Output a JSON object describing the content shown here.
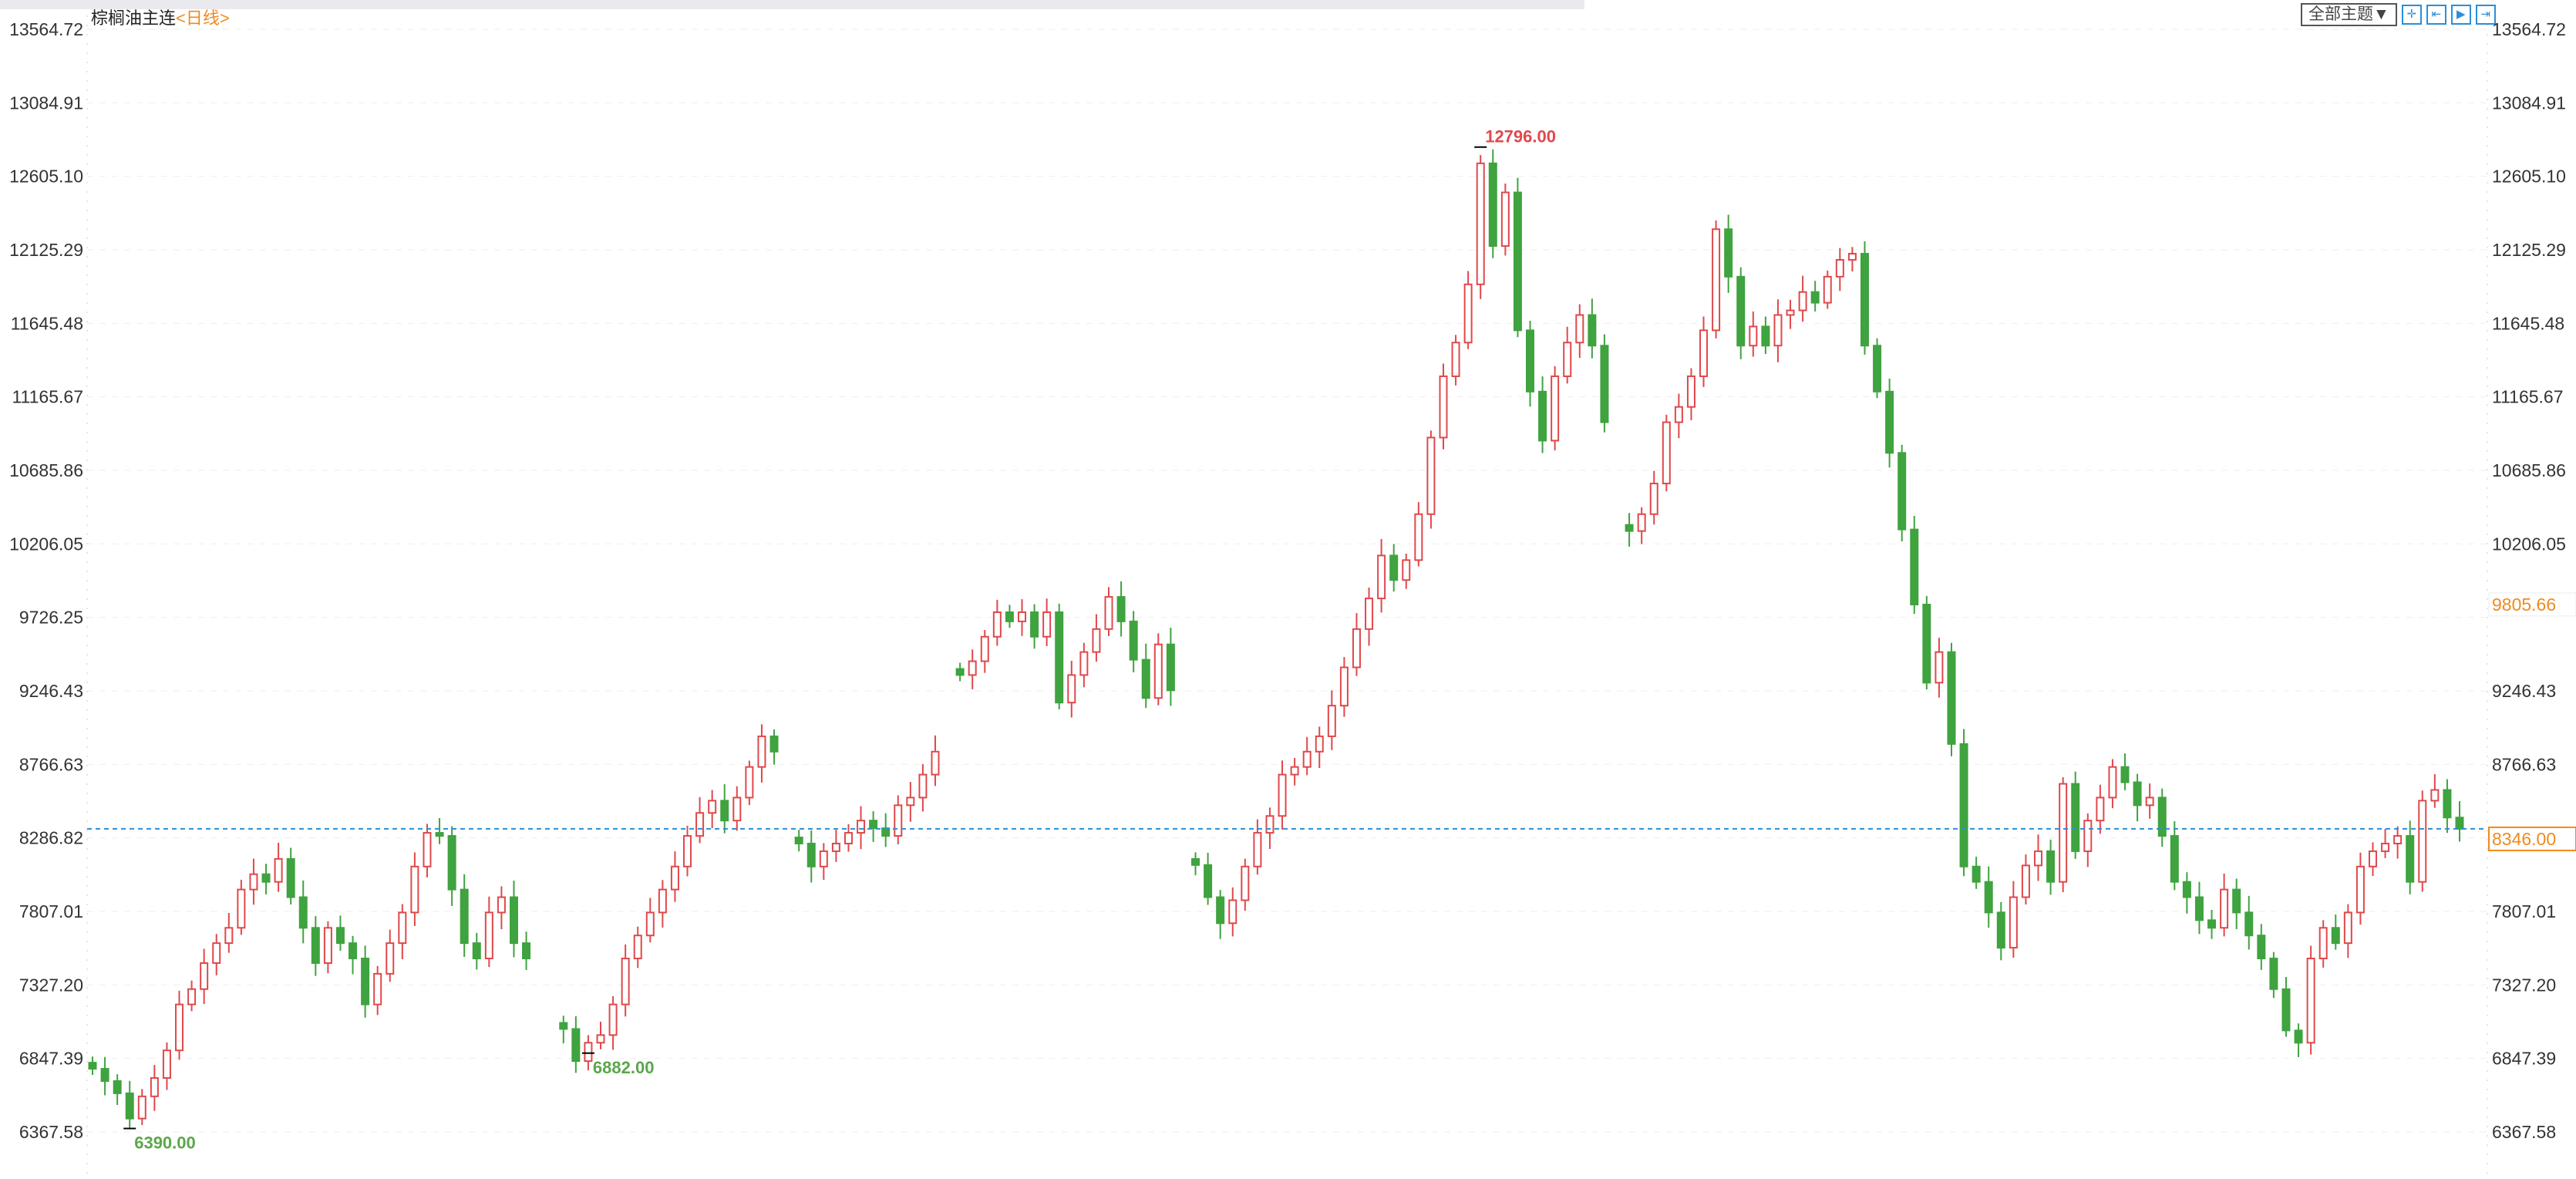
{
  "header": {
    "symbol": "棕榈油主连",
    "period": "<日线>"
  },
  "toolbar": {
    "theme_label": "全部主题▼",
    "icons": [
      "crosshair-icon",
      "jump-start-icon",
      "play-icon",
      "jump-end-icon"
    ],
    "icon_glyphs": [
      "✛",
      "⇤",
      "▶",
      "⇥"
    ]
  },
  "chart_data": {
    "type": "candlestick",
    "y_axis_ticks": [
      "13564.72",
      "13084.91",
      "12605.10",
      "12125.29",
      "11645.48",
      "11165.67",
      "10685.86",
      "10206.05",
      "9726.25",
      "9246.43",
      "8766.63",
      "8286.82",
      "7807.01",
      "7327.20",
      "6847.39",
      "6367.58"
    ],
    "ylim": [
      6367.58,
      13564.72
    ],
    "grid": true,
    "colors": {
      "up": "#e0484b",
      "down": "#3fa33f",
      "last_price_line": "#2a8fd6",
      "accent": "#f08a1c"
    },
    "closes": [
      6780,
      6700,
      6620,
      6455,
      6600,
      6720,
      6900,
      7200,
      7300,
      7470,
      7600,
      7700,
      7950,
      8050,
      8000,
      8150,
      7900,
      7700,
      7470,
      7700,
      7600,
      7500,
      7200,
      7400,
      7600,
      7800,
      8100,
      8320,
      8300,
      7950,
      7600,
      7500,
      7800,
      7900,
      7600,
      7500,
      null,
      null,
      7040,
      6830,
      6950,
      7000,
      7200,
      7500,
      7650,
      7800,
      7950,
      8100,
      8300,
      8450,
      8530,
      8400,
      8550,
      8750,
      8950,
      8850,
      null,
      8250,
      8100,
      8200,
      8250,
      8320,
      8400,
      8350,
      8300,
      8500,
      8550,
      8700,
      8850,
      null,
      9350,
      9440,
      9600,
      9760,
      9700,
      9760,
      9600,
      9760,
      9170,
      9350,
      9500,
      9650,
      9860,
      9700,
      9450,
      9200,
      9550,
      9250,
      null,
      8110,
      7900,
      7730,
      7880,
      8100,
      8320,
      8430,
      8700,
      8750,
      8850,
      8950,
      9150,
      9400,
      9650,
      9850,
      10130,
      9970,
      10100,
      10400,
      10900,
      11300,
      11520,
      11900,
      12690,
      12150,
      12500,
      11600,
      11200,
      10880,
      11300,
      11520,
      11700,
      11500,
      11000,
      null,
      10290,
      10400,
      10600,
      11000,
      11100,
      11300,
      11600,
      12260,
      11950,
      11500,
      11625,
      11500,
      11700,
      11730,
      11850,
      11780,
      11950,
      12060,
      12100,
      11500,
      11200,
      10800,
      10300,
      9810,
      9300,
      9500,
      8900,
      8100,
      8000,
      7800,
      7570,
      7900,
      8107,
      8200,
      8000,
      8640,
      8200,
      8400,
      8550,
      8750,
      8650,
      8500,
      8550,
      8300,
      8000,
      7900,
      7750,
      7700,
      7950,
      7800,
      7650,
      7500,
      7300,
      7030,
      6950,
      7500,
      7700,
      7600,
      7800,
      8100,
      8200,
      8250,
      8300,
      8000,
      8530,
      8600,
      8420,
      8346
    ],
    "annotations": {
      "high": "12796.00",
      "low_left": "6390.00",
      "low_right": "6882.00"
    },
    "last_price": "8346.00",
    "crosshair_price": "9805.66"
  }
}
